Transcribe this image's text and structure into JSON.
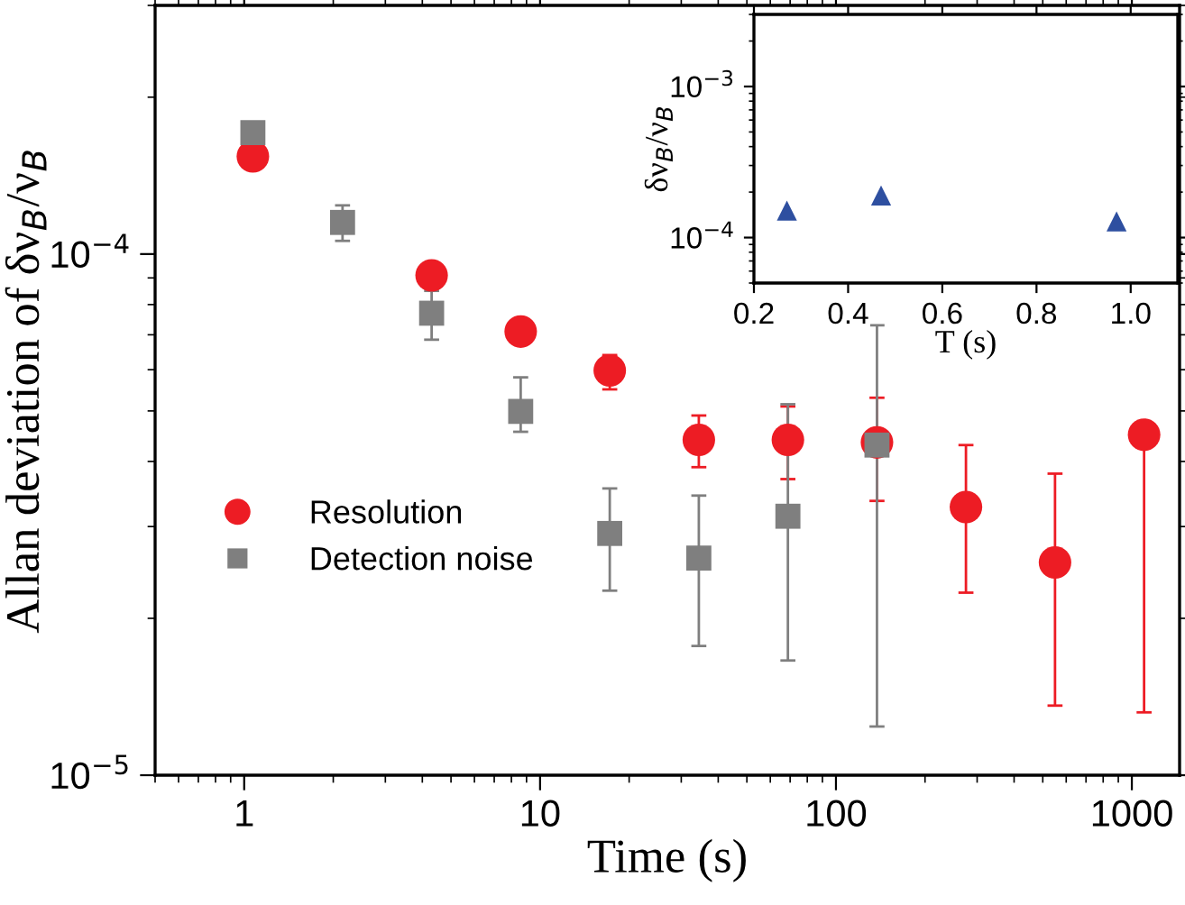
{
  "chart_data": [
    {
      "type": "scatter",
      "xlabel": "Time (s)",
      "ylabel": "Allan deviation of δν$_{B}$/ν$_{B}$",
      "log": "xy",
      "xlim": [
        0.5,
        1450
      ],
      "xticks": [
        1,
        10,
        100,
        1000
      ],
      "ylim": [
        1e-05,
        0.0003
      ],
      "yticks": [
        {
          "value": 1e-05,
          "label": "10$^{−5}$"
        },
        {
          "value": 0.0001,
          "label": "10$^{−4}$"
        }
      ],
      "legend": "bottom left",
      "grid": false,
      "series": [
        {
          "name": "Resolution",
          "color": "#ed1c24",
          "marker": "circle",
          "x": [
            1.07,
            2.15,
            4.3,
            8.6,
            17.2,
            34.4,
            68.8,
            137.6,
            275,
            550,
            1100
          ],
          "values": [
            0.000154,
            null,
            9.1e-05,
            7.1e-05,
            5.98e-05,
            4.4e-05,
            4.4e-05,
            4.35e-05,
            3.27e-05,
            2.56e-05,
            4.5e-05
          ],
          "errors": [
            null,
            null,
            null,
            null,
            [
              5.5e-05,
              6.4e-05
            ],
            [
              3.9e-05,
              4.9e-05
            ],
            [
              3.7e-05,
              5.1e-05
            ],
            [
              3.36e-05,
              5.3e-05
            ],
            [
              2.24e-05,
              4.3e-05
            ],
            [
              1.36e-05,
              3.79e-05
            ],
            [
              1.32e-05,
              4.5e-05
            ]
          ]
        },
        {
          "name": "Detection noise",
          "color": "#7f7f7f",
          "marker": "square",
          "x": [
            1.07,
            2.15,
            4.3,
            8.6,
            17.2,
            34.4,
            68.8,
            137.6
          ],
          "values": [
            0.000171,
            0.000115,
            7.7e-05,
            4.99e-05,
            2.91e-05,
            2.61e-05,
            3.14e-05,
            4.3e-05
          ],
          "errors": [
            null,
            [
              0.000106,
              0.000124
            ],
            [
              6.85e-05,
              8.5e-05
            ],
            [
              4.56e-05,
              5.8e-05
            ],
            [
              2.26e-05,
              3.55e-05
            ],
            [
              1.77e-05,
              3.44e-05
            ],
            [
              1.66e-05,
              5.15e-05
            ],
            [
              1.24e-05,
              7.3e-05
            ]
          ]
        }
      ]
    },
    {
      "type": "scatter",
      "xlabel": "T (s)",
      "ylabel": "δν$_{B}$/ν$_{B}$",
      "log": "y",
      "xlim": [
        0.2,
        1.1
      ],
      "xticks": [
        0.2,
        0.4,
        0.6,
        0.8,
        {
          "value": 1.0,
          "label": "1.0"
        }
      ],
      "ylim": [
        5e-05,
        0.003
      ],
      "yticks": [
        {
          "value": 0.0001,
          "label": "10$^{−4}$"
        },
        {
          "value": 0.001,
          "label": "10$^{−3}$"
        }
      ],
      "grid": false,
      "series": [
        {
          "color": "#2e4fa0",
          "marker": "triangle",
          "x": [
            0.27,
            0.47,
            0.97
          ],
          "values": [
            0.000151,
            0.00019,
            0.000128
          ]
        }
      ]
    }
  ]
}
